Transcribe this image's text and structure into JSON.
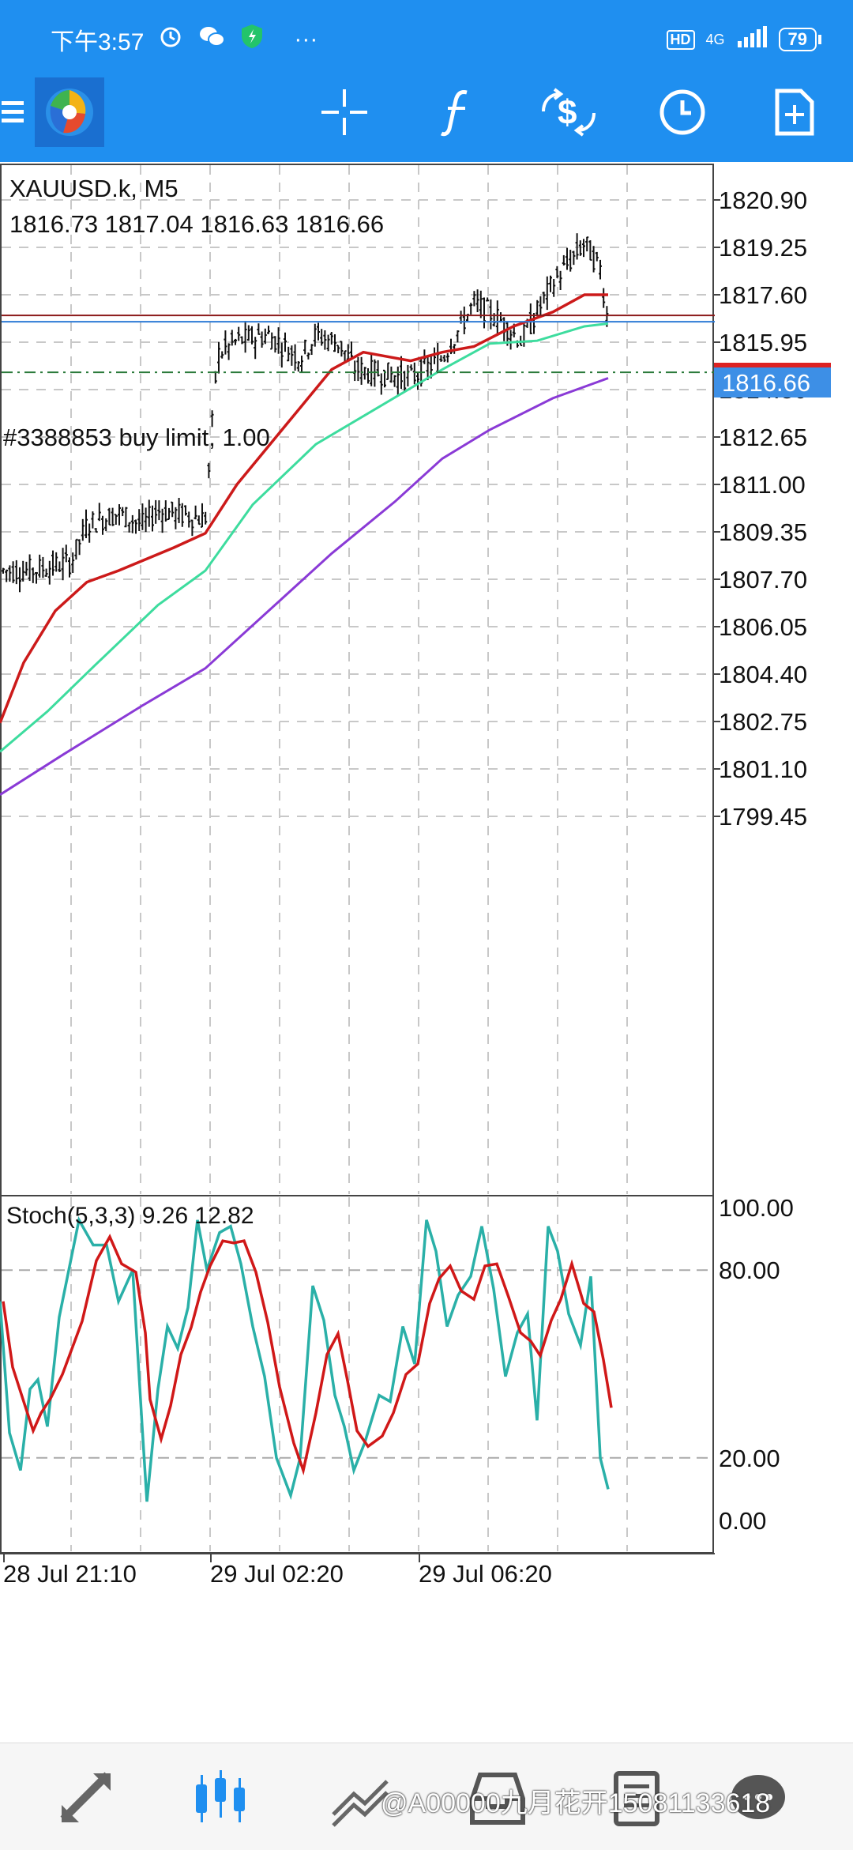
{
  "status_bar": {
    "time": "下午3:57",
    "more": "···",
    "hd": "HD",
    "network": "4G",
    "battery": "79"
  },
  "toolbar": {
    "menu_icon": "hamburger-icon",
    "logo_icon": "metatrader-logo-icon",
    "crosshair_icon": "crosshair-icon",
    "indicators_icon": "function-f-icon",
    "trade_icon": "dollar-arrows-icon",
    "period_icon": "clock-icon",
    "new_order_icon": "document-plus-icon"
  },
  "chart": {
    "symbol_label": "XAUUSD.k, M5",
    "ohlc_label": "1816.73 1817.04 1816.63 1816.66",
    "order_label": "#3388853 buy limit, 1.00",
    "current_price": "1816.66",
    "price_axis": [
      "1820.90",
      "1819.25",
      "1817.60",
      "1815.95",
      "1814.30",
      "1812.65",
      "1811.00",
      "1809.35",
      "1807.70",
      "1806.05",
      "1804.40",
      "1802.75",
      "1801.10",
      "1799.45"
    ],
    "stoch_label": "Stoch(5,3,3) 9.26 12.82",
    "stoch_axis": [
      "100.00",
      "80.00",
      "20.00",
      "0.00"
    ],
    "time_axis": [
      "28 Jul 21:10",
      "29 Jul 02:20",
      "29 Jul 06:20"
    ],
    "colors": {
      "ma_fast": "#cc1a1a",
      "ma_mid": "#3ddc9e",
      "ma_slow": "#8a3ad6",
      "stoch_main": "#2ab0a8",
      "stoch_signal": "#d01818",
      "bid_line": "#2e7bd6",
      "ask_line": "#8b1a1a",
      "order_line": "#2a7a3a"
    }
  },
  "chart_data": {
    "type": "line",
    "title": "XAUUSD.k, M5",
    "ylim": [
      1798.3,
      1822.0
    ],
    "x": [
      "28 Jul 21:10",
      "29 Jul 02:20",
      "29 Jul 06:20"
    ],
    "series": [],
    "current_price": 1816.66,
    "buy_limit_level": 1814.9
  },
  "bottom_bar": {
    "icons": [
      "quotes-arrows-icon",
      "chart-candles-icon",
      "trade-lines-icon",
      "history-icon",
      "news-icon",
      "messages-icon"
    ],
    "watermark": "@A00000九月花开15081133618"
  }
}
